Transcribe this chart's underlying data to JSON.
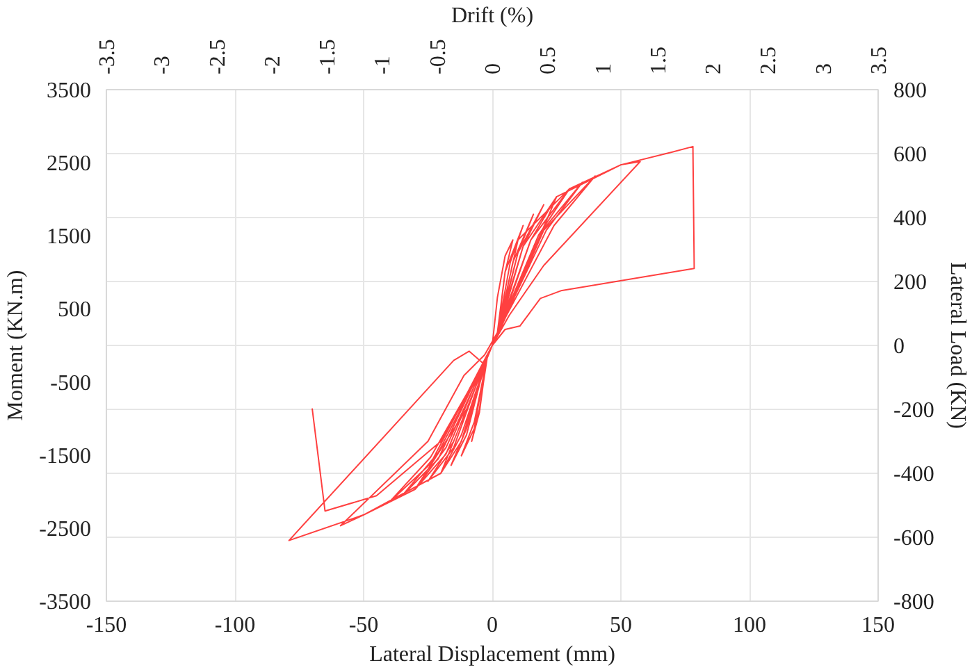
{
  "chart_data": {
    "type": "line",
    "xlabel": "Lateral Displacement (mm)",
    "ylabel": "Moment (KN.m)",
    "y2label": "Lateral Load (KN)",
    "x2label": "Drift (%)",
    "xlim": [
      -150,
      150
    ],
    "xticks": [
      -150,
      -100,
      -50,
      0,
      50,
      100,
      150
    ],
    "ylim": [
      -3500,
      3500
    ],
    "yticks": [
      -3500,
      -2500,
      -1500,
      -500,
      500,
      1500,
      2500,
      3500
    ],
    "y2lim": [
      -800,
      800
    ],
    "y2ticks": [
      -800,
      -600,
      -400,
      -200,
      0,
      200,
      400,
      600,
      800
    ],
    "x2lim": [
      -3.5,
      3.5
    ],
    "x2ticks": [
      -3.5,
      -3,
      -2.5,
      -2,
      -1.5,
      -1,
      -0.5,
      0,
      0.5,
      1,
      1.5,
      2,
      2.5,
      3,
      3.5
    ],
    "grid": true,
    "marker": "none",
    "line_style": "solid",
    "series": [
      {
        "color": "#ff0000",
        "axis": "y2",
        "x": [
          0,
          2,
          5,
          8,
          5,
          2,
          -2,
          -5,
          -8,
          -5,
          -2,
          2,
          5,
          12,
          7,
          2,
          -2,
          -7,
          -12,
          -7,
          -2,
          2,
          8,
          16,
          10,
          2,
          -2,
          -10,
          -16,
          -10,
          -2,
          2,
          10,
          20,
          12,
          2,
          -2,
          -12,
          -20,
          -12,
          -2,
          2,
          12,
          25,
          15,
          2,
          -2,
          -15,
          -25,
          -15,
          -2,
          2,
          15,
          30,
          18,
          2,
          -2,
          -18,
          -30,
          -18,
          -2,
          2,
          18,
          35,
          21,
          2,
          -2,
          -21,
          -35,
          -21,
          -2,
          2,
          20,
          40,
          24,
          2,
          -2,
          -24,
          -40,
          -24,
          -2,
          2,
          25,
          50,
          57.5,
          20,
          6.6,
          0,
          -10,
          -30,
          -50,
          -59,
          -25,
          -11,
          -3,
          2,
          10,
          30,
          50,
          70,
          78,
          78.5,
          26.7,
          18.7,
          10.8,
          5,
          0,
          -5,
          -20,
          -50,
          -79,
          -15,
          -9,
          -3,
          -20,
          -45,
          -65,
          -70
        ],
        "values": [
          0,
          150,
          280,
          330,
          230,
          40,
          -40,
          -200,
          -300,
          -210,
          -30,
          30,
          230,
          375,
          260,
          40,
          -40,
          -240,
          -345,
          -260,
          -30,
          30,
          260,
          410,
          290,
          40,
          -40,
          -260,
          -375,
          -280,
          -30,
          30,
          290,
          440,
          310,
          40,
          -40,
          -280,
          -400,
          -300,
          -30,
          30,
          310,
          465,
          330,
          40,
          -40,
          -300,
          -425,
          -320,
          -30,
          30,
          330,
          490,
          345,
          40,
          -40,
          -320,
          -450,
          -340,
          -30,
          30,
          345,
          510,
          360,
          40,
          -40,
          -335,
          -470,
          -355,
          -30,
          30,
          360,
          530,
          375,
          40,
          -40,
          -350,
          -490,
          -370,
          -30,
          30,
          465,
          565,
          575,
          250,
          94,
          0,
          -200,
          -450,
          -530,
          -564,
          -300,
          -94,
          -30,
          40,
          330,
          490,
          565,
          605,
          622,
          241,
          171,
          147,
          61,
          50,
          0,
          -100,
          -400,
          -530,
          -610,
          -47,
          -18,
          -60,
          -300,
          -470,
          -518,
          -197
        ]
      }
    ]
  }
}
